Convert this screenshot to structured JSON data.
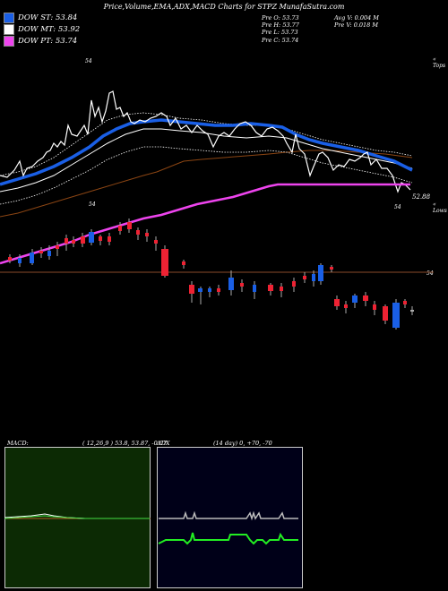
{
  "header": {
    "title": "Price,Volume,EMA,ADX,MACD Charts for STPZ MunafaSutra.com"
  },
  "legend": [
    {
      "label": "DOW ST: 53.84",
      "color": "#1a5fe6"
    },
    {
      "label": "DOW MT: 53.92",
      "color": "#ffffff"
    },
    {
      "label": "DOW PT: 53.74",
      "color": "#ee44ee"
    }
  ],
  "stats": {
    "prev_open": "Pre   O: 53.73",
    "prev_high": "Pre   H: 53.77",
    "prev_low": "Pre   L: 53.73",
    "prev_close": "Pre   C: 53.74",
    "avg_volume": "Avg V: 0.004   M",
    "prev_volume": "Pre   V: 0.018 M"
  },
  "annotations": {
    "top_right": "« Tops",
    "bottom_right": "« Lows",
    "label_54_a": "54",
    "label_54_b": "54",
    "label_54_c": "54",
    "label_54_d": "54",
    "price_label": "52.88"
  },
  "macd_panel": {
    "label": "MACD:",
    "params": "( 12,26,9 ) 53.8,  53.87,  -0.07"
  },
  "adx_panel": {
    "label": "ADX",
    "params": "(14  day) 0,  +70,  -70"
  },
  "chart_data": {
    "type": "line",
    "title": "Price,Volume,EMA,ADX,MACD Charts for STPZ MunafaSutra.com",
    "xlabel": "",
    "ylabel": "",
    "series": [
      {
        "name": "DOW ST",
        "color": "#1a5fe6",
        "last": 53.84
      },
      {
        "name": "DOW MT",
        "color": "#ffffff",
        "last": 53.92
      },
      {
        "name": "DOW PT",
        "color": "#ee44ee",
        "last": 53.74
      }
    ],
    "reference_level": 54,
    "last_low_label": 52.88
  }
}
